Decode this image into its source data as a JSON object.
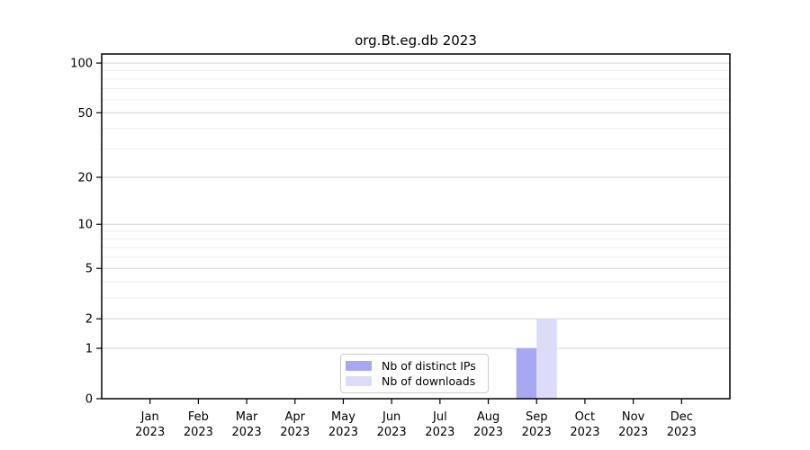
{
  "title": "org.Bt.eg.db 2023",
  "chart_data": {
    "type": "bar",
    "title": "org.Bt.eg.db 2023",
    "categories": [
      "Jan",
      "Feb",
      "Mar",
      "Apr",
      "May",
      "Jun",
      "Jul",
      "Aug",
      "Sep",
      "Oct",
      "Nov",
      "Dec"
    ],
    "year_label": "2023",
    "series": [
      {
        "name": "Nb of distinct IPs",
        "color": "#a8a8f2",
        "values": [
          0,
          0,
          0,
          0,
          0,
          0,
          0,
          0,
          1,
          0,
          0,
          0
        ]
      },
      {
        "name": "Nb of downloads",
        "color": "#dcdcf8",
        "values": [
          0,
          0,
          0,
          0,
          0,
          0,
          0,
          0,
          2,
          0,
          0,
          0
        ]
      }
    ],
    "xlabel": "",
    "ylabel": "",
    "yscale": "log1p",
    "ylim": [
      0,
      113.4
    ],
    "y_major_ticks": [
      0,
      1,
      2,
      5,
      10,
      20,
      50,
      100
    ],
    "y_minor_gridlines": [
      3,
      4,
      6,
      7,
      8,
      9,
      30,
      40,
      60,
      70,
      80,
      90
    ],
    "grid": "horizontal-on",
    "legend_position": "lower center"
  },
  "colors": {
    "background": "#ffffff",
    "axis": "#000000",
    "tick_label": "#000000",
    "major_grid": "#d2d2d2",
    "minor_grid": "#ededed",
    "legend_border": "#cccccc"
  }
}
